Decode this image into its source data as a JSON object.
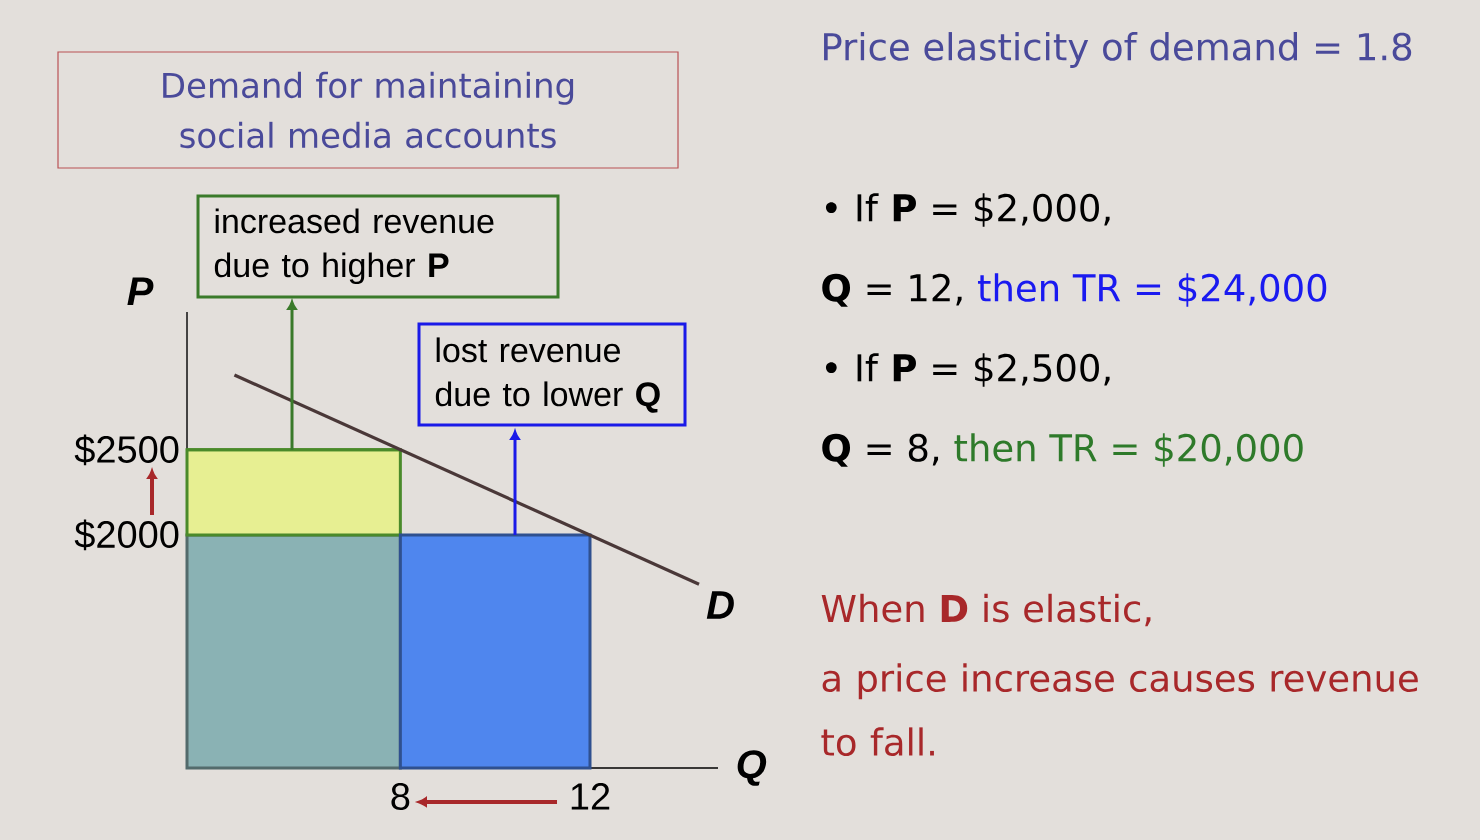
{
  "chart_data": {
    "type": "line",
    "title": "Demand for maintaining social media accounts",
    "xlabel": "Q",
    "ylabel": "P",
    "xlim": [
      3.5,
      14.7
    ],
    "ylim": [
      630,
      3310
    ],
    "xticks": [
      8,
      12
    ],
    "yticks": [
      {
        "value": 2000,
        "label": "$2000"
      },
      {
        "value": 2500,
        "label": "$2500"
      }
    ],
    "series": [
      {
        "type": "area",
        "color": "#8ab2b4",
        "x": [
          3.5,
          8
        ],
        "values": [
          2000,
          2000
        ]
      },
      {
        "type": "line",
        "color": "#4a8a2a",
        "x": [
          3.5,
          8
        ],
        "values": [
          2500,
          2500
        ],
        "lower": [
          2000,
          2000
        ],
        "upper": [
          2500,
          2500
        ]
      },
      {
        "type": "area",
        "color": "#4f86ee",
        "x": [
          8,
          12
        ],
        "values": [
          2000,
          2000
        ]
      },
      {
        "name": "D",
        "color": "#4a3838",
        "x": [
          4.5,
          14.3
        ],
        "values": [
          2940,
          1710
        ]
      }
    ],
    "annotations": [
      "increased revenue due to higher **P**",
      "lost revenue due to lower **Q**",
      "Price elasticity of demand = 1.8",
      "• If **P** = $2,000,",
      "**Q** = 12,",
      "then TR = $24,000",
      "• If **P** = $2,500,",
      "**Q** = 8,",
      "then TR = $20,000",
      "When **D** is elastic,",
      "a price increase causes revenue to fall."
    ]
  }
}
